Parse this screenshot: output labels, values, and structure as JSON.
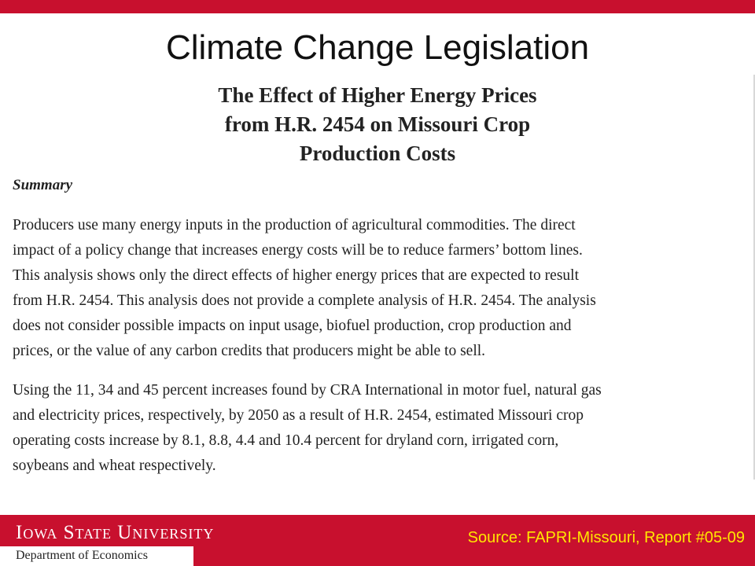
{
  "slide": {
    "title": "Climate Change Legislation"
  },
  "document": {
    "title_lines": [
      "The Effect of Higher Energy Prices",
      "from H.R. 2454 on Missouri Crop",
      "Production Costs"
    ],
    "summary_heading": "Summary",
    "paragraph1_lines": [
      "Producers use many energy inputs in the production of agricultural commodities.  The direct",
      "impact of a policy change that increases energy costs will be to reduce farmers’ bottom lines.",
      "This analysis shows only the direct effects of higher energy prices that are expected to result",
      "from H.R. 2454. This analysis does not provide a complete analysis of H.R. 2454. The analysis",
      "does not consider possible impacts on input usage, biofuel production, crop production and",
      "prices, or the value of any carbon credits that producers might be able to sell."
    ],
    "paragraph2_lines": [
      "Using the 11, 34 and 45 percent increases found by CRA International in motor fuel, natural gas",
      "and electricity prices, respectively, by 2050 as a result of H.R. 2454, estimated Missouri crop",
      "operating costs increase by 8.1, 8.8, 4.4 and 10.4 percent for dryland corn, irrigated corn,",
      "soybeans and wheat respectively."
    ]
  },
  "footer": {
    "logo_text": "Iowa State University",
    "department": "Department of Economics",
    "source": "Source: FAPRI-Missouri, Report #05-09"
  },
  "colors": {
    "brand_red": "#c8102e",
    "source_yellow": "#ffe600"
  }
}
